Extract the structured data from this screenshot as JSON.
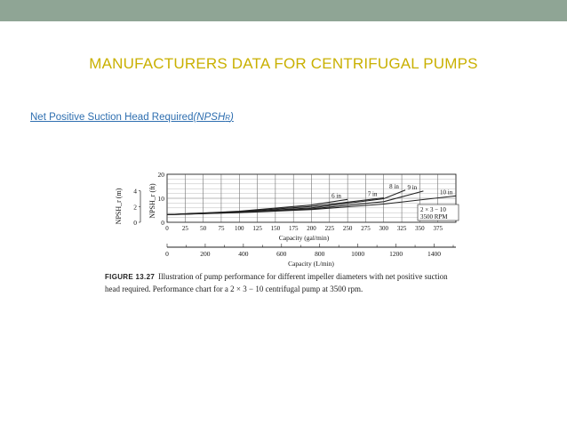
{
  "header": {
    "bar_color": "#8fa595",
    "title": "MANUFACTURERS DATA FOR CENTRIFUGAL PUMPS",
    "title_color": "#c9b000"
  },
  "subtitle": {
    "main": "Net Positive Suction Head Required",
    "abbr_open": "(NPSH",
    "abbr_sub": "R",
    "abbr_close": ")",
    "color": "#2f6fb0"
  },
  "figure": {
    "ylabel_m": "NPSH_r (m)",
    "ylabel_ft": "NPSH_r (ft)",
    "xlabel_gal": "Capacity (gal/min)",
    "xlabel_l": "Capacity (L/min)",
    "ticks_m": [
      "4",
      "2",
      "0"
    ],
    "ticks_ft": [
      "20",
      "10",
      "0"
    ],
    "ticks_gal": [
      "0",
      "25",
      "50",
      "75",
      "100",
      "125",
      "150",
      "175",
      "200",
      "225",
      "250",
      "275",
      "300",
      "325",
      "350",
      "375"
    ],
    "ticks_l": [
      "0",
      "200",
      "400",
      "600",
      "800",
      "1000",
      "1200",
      "1400"
    ],
    "legend_line1": "2 × 3 − 10",
    "legend_line2": "3500 RPM",
    "curve_labels": [
      "6 in",
      "7 in",
      "8 in",
      "9 in",
      "10 in"
    ]
  },
  "chart_data": {
    "type": "line",
    "xlabel": "Capacity (gal/min)",
    "ylabel": "NPSH_r (ft)",
    "xlim": [
      0,
      400
    ],
    "ylim": [
      0,
      20
    ],
    "grid": true,
    "series": [
      {
        "name": "6 in",
        "x": [
          0,
          100,
          200,
          250
        ],
        "y": [
          3.2,
          4.6,
          7.2,
          9.5
        ]
      },
      {
        "name": "7 in",
        "x": [
          0,
          100,
          200,
          300
        ],
        "y": [
          3.2,
          4.4,
          6.6,
          10.2
        ]
      },
      {
        "name": "8 in",
        "x": [
          0,
          100,
          200,
          300,
          330
        ],
        "y": [
          3.2,
          4.2,
          6.0,
          9.8,
          13.4
        ]
      },
      {
        "name": "9 in",
        "x": [
          0,
          100,
          200,
          300,
          355
        ],
        "y": [
          3.2,
          4.1,
          5.6,
          8.6,
          13.0
        ]
      },
      {
        "name": "10 in",
        "x": [
          0,
          100,
          200,
          300,
          400
        ],
        "y": [
          3.2,
          4.0,
          5.3,
          7.6,
          11.0
        ]
      }
    ]
  },
  "caption": {
    "figure_number": "FIGURE 13.27",
    "text": "Illustration of pump performance for different impeller diameters with net positive suction head required. Performance chart for a 2 × 3 − 10 centrifugal pump at 3500 rpm."
  }
}
